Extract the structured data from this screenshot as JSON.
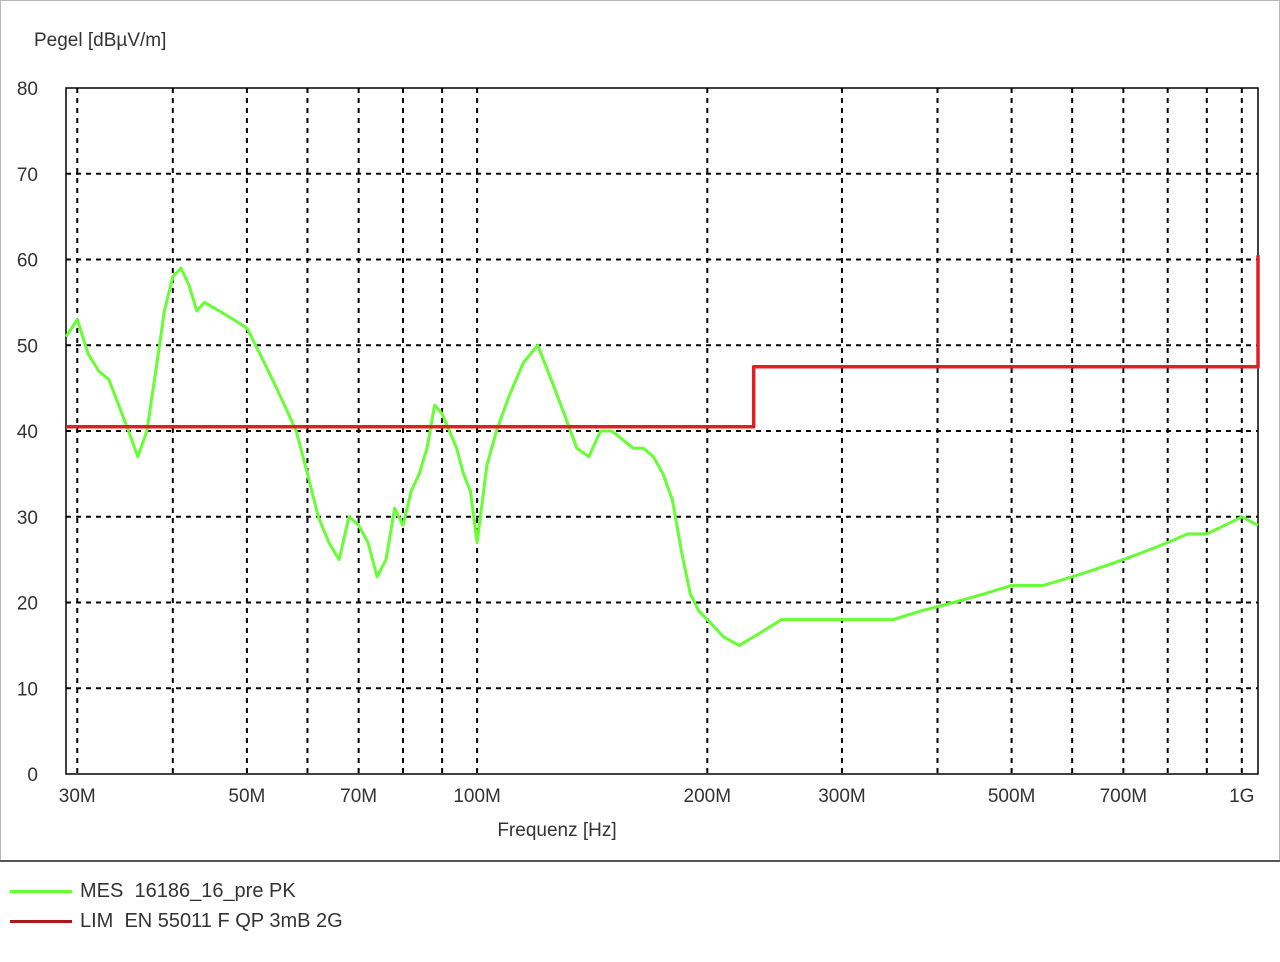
{
  "chart_data": {
    "type": "line",
    "ylabel": "Pegel [dBµV/m]",
    "xlabel": "Frequenz [Hz]",
    "x_scale": "log",
    "xlim": [
      29000000,
      1050000000
    ],
    "ylim": [
      0,
      80
    ],
    "y_ticks": [
      0,
      10,
      20,
      30,
      40,
      50,
      60,
      70,
      80
    ],
    "x_ticks": [
      {
        "value": 30000000,
        "label": "30M"
      },
      {
        "value": 50000000,
        "label": "50M"
      },
      {
        "value": 70000000,
        "label": "70M"
      },
      {
        "value": 100000000,
        "label": "100M"
      },
      {
        "value": 200000000,
        "label": "200M"
      },
      {
        "value": 300000000,
        "label": "300M"
      },
      {
        "value": 500000000,
        "label": "500M"
      },
      {
        "value": 700000000,
        "label": "700M"
      },
      {
        "value": 1000000000,
        "label": "1G"
      }
    ],
    "x_gridlines": [
      30000000,
      40000000,
      50000000,
      60000000,
      70000000,
      80000000,
      90000000,
      100000000,
      200000000,
      300000000,
      400000000,
      500000000,
      600000000,
      700000000,
      800000000,
      900000000,
      1000000000
    ],
    "grid": "dashed",
    "legend_position": "bottom",
    "series": [
      {
        "name": "MES  16186_16_pre PK",
        "color": "#66ff33",
        "x": [
          29000000,
          30000000,
          31000000,
          32000000,
          33000000,
          34000000,
          35000000,
          36000000,
          37000000,
          38000000,
          39000000,
          40000000,
          41000000,
          42000000,
          43000000,
          44000000,
          46000000,
          48000000,
          50000000,
          52000000,
          54000000,
          56000000,
          58000000,
          60000000,
          62000000,
          64000000,
          66000000,
          68000000,
          70000000,
          72000000,
          74000000,
          76000000,
          78000000,
          80000000,
          82000000,
          84000000,
          86000000,
          88000000,
          90000000,
          92000000,
          94000000,
          96000000,
          98000000,
          100000000,
          103000000,
          106000000,
          110000000,
          115000000,
          120000000,
          125000000,
          130000000,
          135000000,
          140000000,
          145000000,
          150000000,
          155000000,
          160000000,
          165000000,
          170000000,
          175000000,
          180000000,
          185000000,
          190000000,
          195000000,
          200000000,
          210000000,
          220000000,
          230000000,
          240000000,
          250000000,
          270000000,
          290000000,
          320000000,
          350000000,
          380000000,
          420000000,
          460000000,
          500000000,
          550000000,
          600000000,
          650000000,
          700000000,
          750000000,
          800000000,
          850000000,
          900000000,
          950000000,
          1000000000,
          1050000000
        ],
        "y": [
          51,
          53,
          49,
          47,
          46,
          43,
          40,
          37,
          40,
          47,
          54,
          58,
          59,
          57,
          54,
          55,
          54,
          53,
          52,
          49,
          46,
          43,
          40,
          35,
          30,
          27,
          25,
          30,
          29,
          27,
          23,
          25,
          31,
          29,
          33,
          35,
          38,
          43,
          42,
          40,
          38,
          35,
          33,
          27,
          36,
          40,
          44,
          48,
          50,
          46,
          42,
          38,
          37,
          40,
          40,
          39,
          38,
          38,
          37,
          35,
          32,
          26,
          21,
          19,
          18,
          16,
          15,
          16,
          17,
          18,
          18,
          18,
          18,
          18,
          19,
          20,
          21,
          22,
          22,
          23,
          24,
          25,
          26,
          27,
          28,
          28,
          29,
          30,
          29
        ]
      },
      {
        "name": "LIM  EN 55011 F QP 3mB 2G",
        "color": "#e02020",
        "x": [
          29000000,
          230000000,
          230000000,
          1050000000,
          1050000000
        ],
        "y": [
          40.5,
          40.5,
          47.5,
          47.5,
          60.5
        ]
      }
    ]
  }
}
